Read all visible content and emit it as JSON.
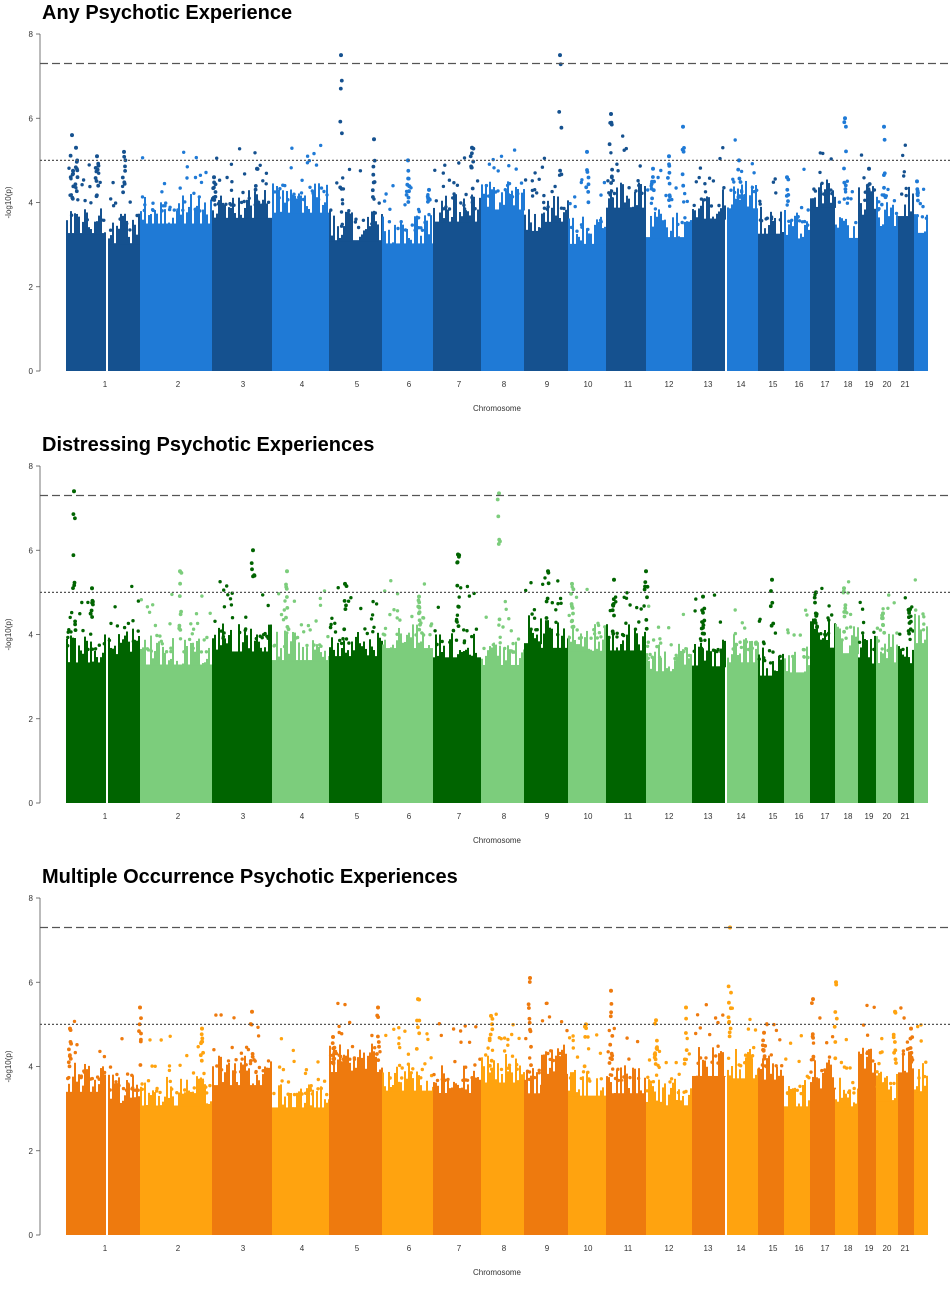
{
  "chart_data": [
    {
      "type": "scatter",
      "title": "Any Psychotic Experience",
      "xlabel": "Chromosome",
      "ylabel": "-log10(p)",
      "ylim": [
        0,
        8
      ],
      "yticks": [
        "0",
        "2",
        "4",
        "6",
        "8"
      ],
      "chromosome_labels": [
        "1",
        "2",
        "3",
        "4",
        "5",
        "6",
        "7",
        "8",
        "9",
        "10",
        "11",
        "12",
        "13",
        "14",
        "15",
        "16",
        "17",
        "18",
        "19",
        "20",
        "21"
      ],
      "thresholds": [
        {
          "value": 7.3,
          "style": "dashed"
        },
        {
          "value": 5,
          "style": "dotted"
        }
      ],
      "colors": [
        "#15518f",
        "#1f7ad6"
      ],
      "peak_max_values": [
        5.6,
        5.3,
        5.1,
        5.2,
        4.6,
        4.8,
        7.5,
        5.5,
        5.0,
        4.3,
        5.3,
        7.5,
        5.2,
        6.1,
        4.8,
        5.1,
        5.8,
        5.0,
        4.6,
        6.0,
        4.8,
        5.8,
        4.5
      ]
    },
    {
      "type": "scatter",
      "title": "Distressing Psychotic Experiences",
      "xlabel": "Chromosome",
      "ylabel": "-log10(p)",
      "ylim": [
        0,
        8
      ],
      "yticks": [
        "0",
        "2",
        "4",
        "6",
        "8"
      ],
      "chromosome_labels": [
        "1",
        "2",
        "3",
        "4",
        "5",
        "6",
        "7",
        "8",
        "9",
        "10",
        "11",
        "12",
        "13",
        "14",
        "15",
        "16",
        "17",
        "18",
        "19",
        "20",
        "21"
      ],
      "thresholds": [
        {
          "value": 7.3,
          "style": "dashed"
        },
        {
          "value": 5,
          "style": "dotted"
        }
      ],
      "colors": [
        "#006400",
        "#7ccd7c"
      ],
      "peak_max_values": [
        7.4,
        5.1,
        5.5,
        6.0,
        5.5,
        5.2,
        4.9,
        5.9,
        7.35,
        5.5,
        5.2,
        5.3,
        5.5,
        4.9,
        5.3,
        5.0,
        5.1,
        4.5,
        4.6
      ]
    },
    {
      "type": "scatter",
      "title": "Multiple Occurrence Psychotic Experiences",
      "xlabel": "Chromosome",
      "ylabel": "-log10(p)",
      "ylim": [
        0,
        8
      ],
      "yticks": [
        "0",
        "2",
        "4",
        "6",
        "8"
      ],
      "chromosome_labels": [
        "1",
        "2",
        "3",
        "4",
        "5",
        "6",
        "7",
        "8",
        "9",
        "10",
        "11",
        "12",
        "13",
        "14",
        "15",
        "16",
        "17",
        "18",
        "19",
        "20",
        "21"
      ],
      "thresholds": [
        {
          "value": 7.3,
          "style": "dashed"
        },
        {
          "value": 5,
          "style": "dotted"
        }
      ],
      "colors": [
        "#ee7a0e",
        "#ffa30f"
      ],
      "peak_max_values": [
        4.9,
        5.4,
        4.9,
        5.3,
        4.7,
        5.4,
        5.6,
        5.2,
        6.1,
        5.0,
        5.8,
        5.1,
        5.4,
        7.3,
        4.8,
        5.6,
        6.0,
        5.3,
        4.9
      ]
    }
  ]
}
